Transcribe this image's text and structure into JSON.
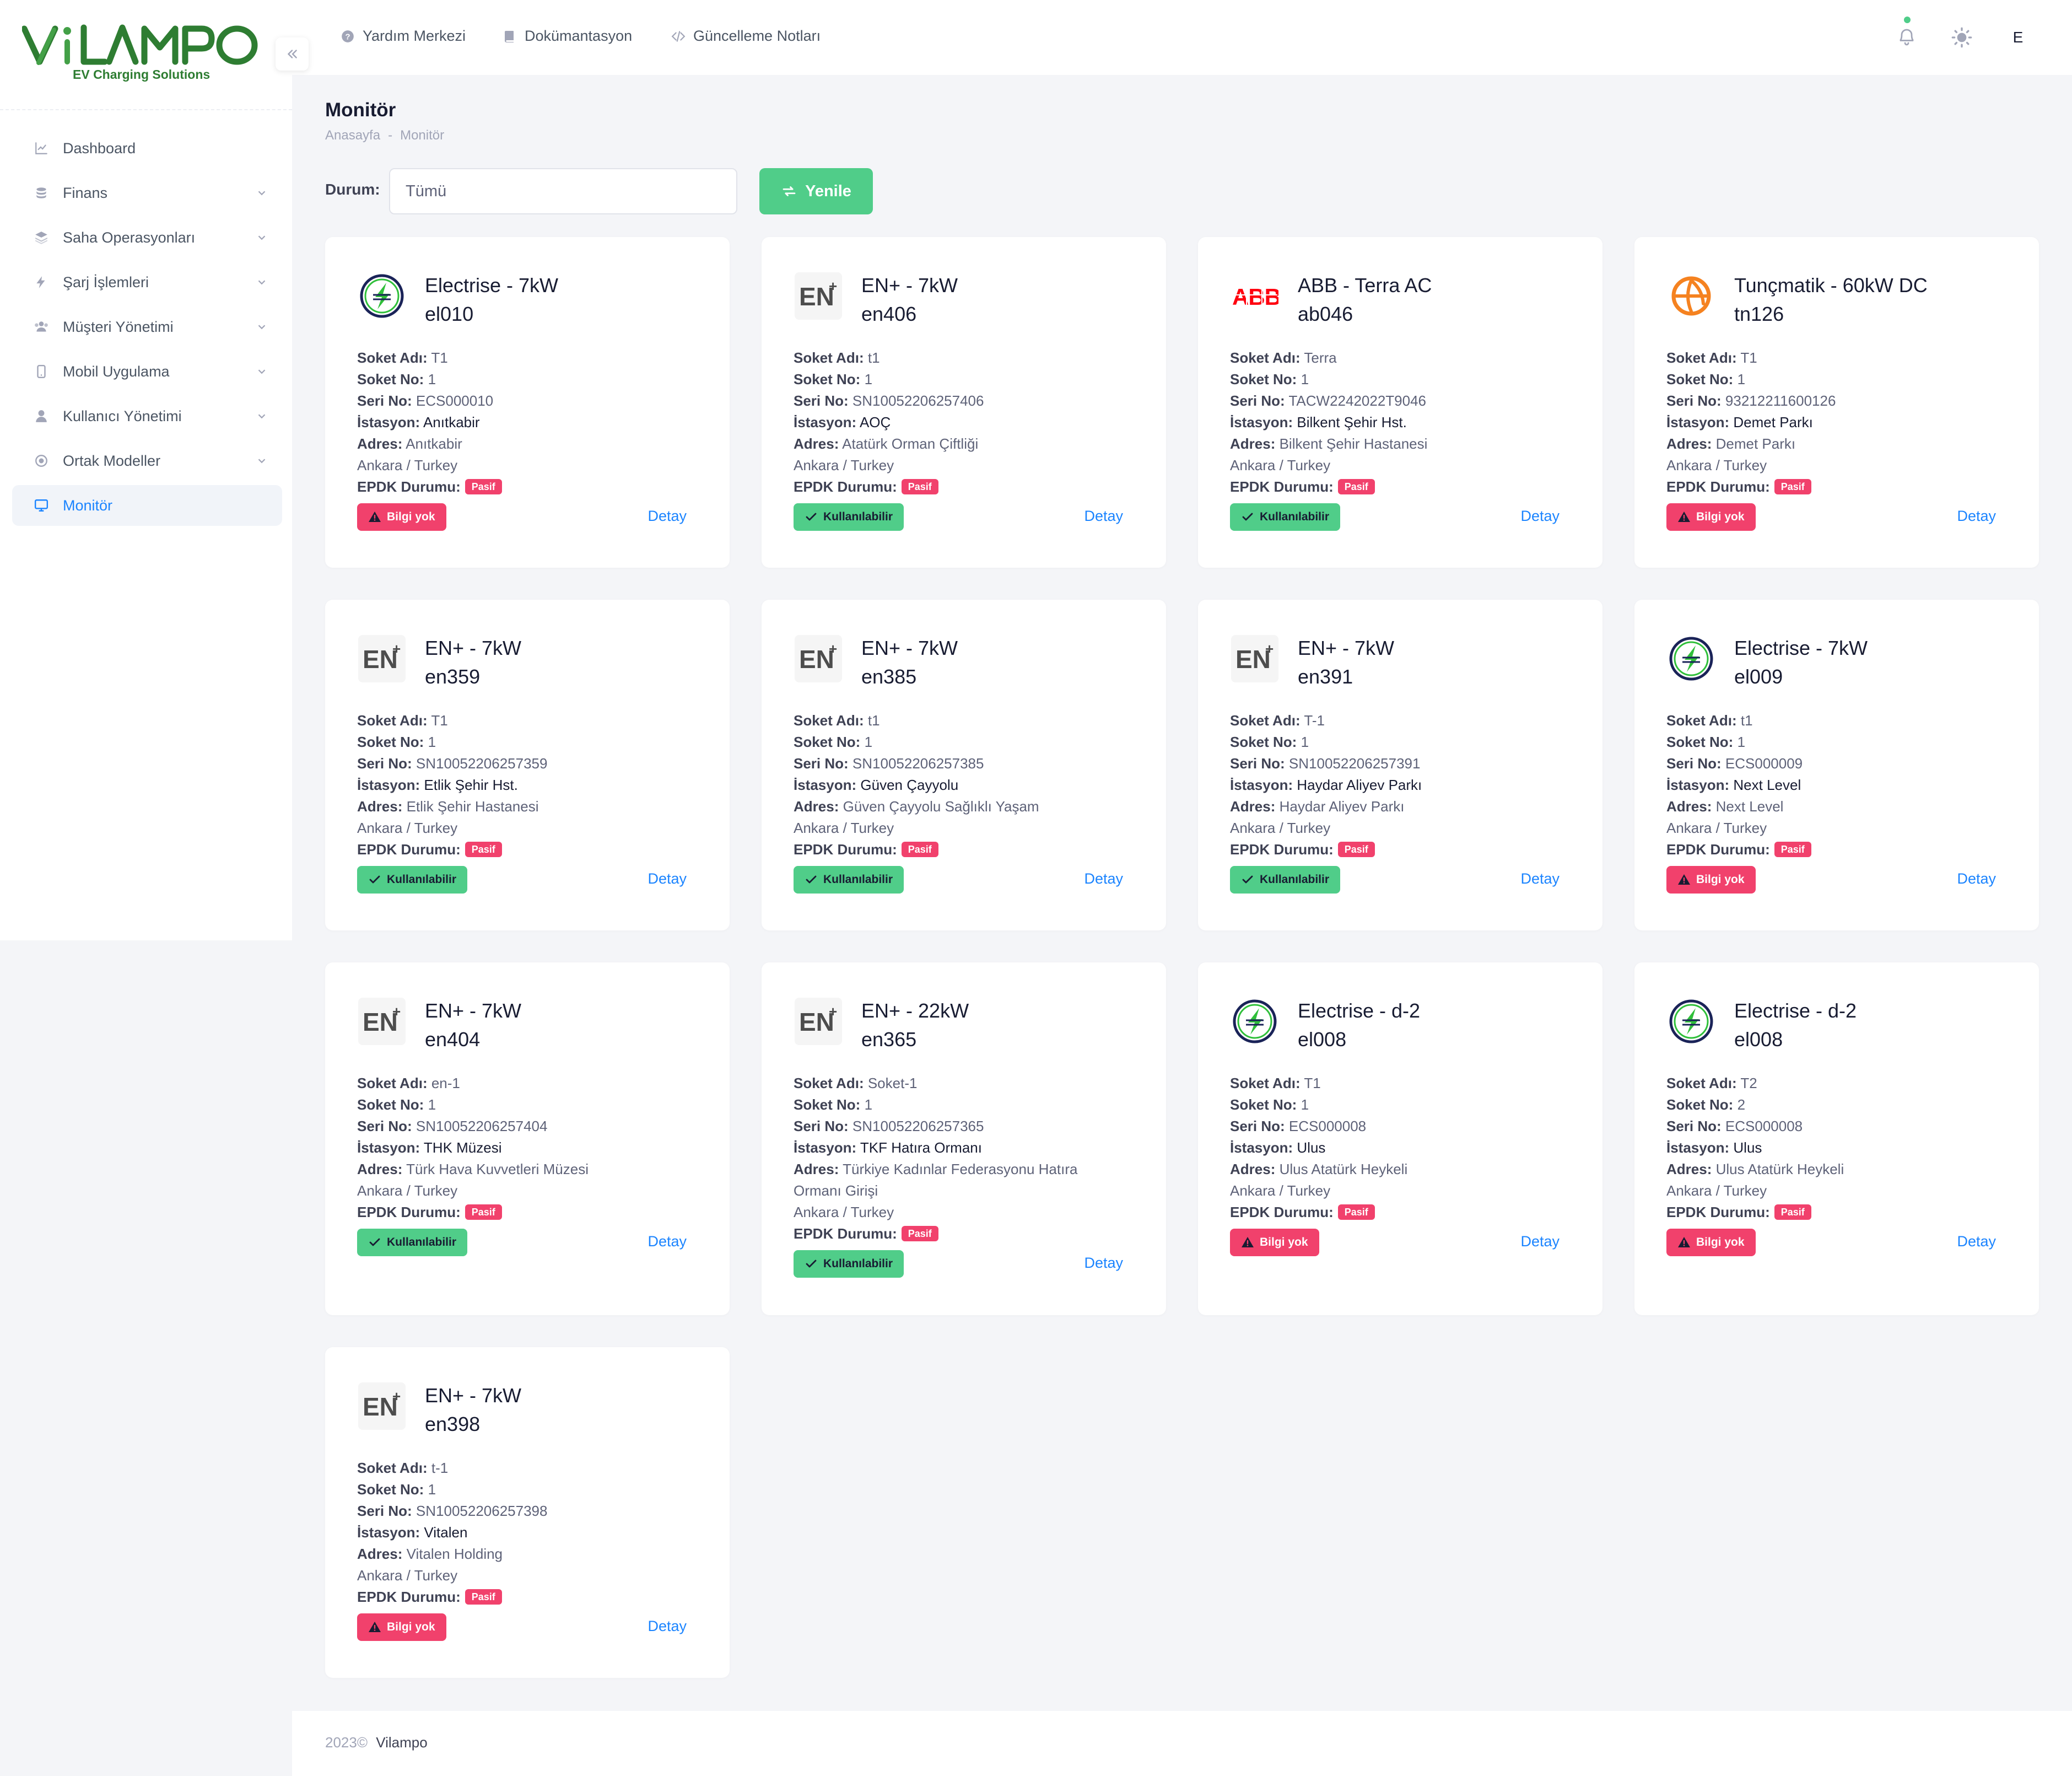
{
  "brand": {
    "logo_text": "ViLAMPO",
    "tagline": "EV Charging Solutions",
    "color_primary": "#2e7d32",
    "color_secondary": "#43a047"
  },
  "sidebar": {
    "items": [
      {
        "label": "Dashboard",
        "icon": "chart-line-icon",
        "has_children": false,
        "active": false
      },
      {
        "label": "Finans",
        "icon": "coins-icon",
        "has_children": true,
        "active": false
      },
      {
        "label": "Saha Operasyonları",
        "icon": "layers-icon",
        "has_children": true,
        "active": false
      },
      {
        "label": "Şarj İşlemleri",
        "icon": "lightning-icon",
        "has_children": true,
        "active": false
      },
      {
        "label": "Müşteri Yönetimi",
        "icon": "users-icon",
        "has_children": true,
        "active": false
      },
      {
        "label": "Mobil Uygulama",
        "icon": "mobile-icon",
        "has_children": true,
        "active": false
      },
      {
        "label": "Kullanıcı Yönetimi",
        "icon": "user-icon",
        "has_children": true,
        "active": false
      },
      {
        "label": "Ortak Modeller",
        "icon": "disc-icon",
        "has_children": true,
        "active": false
      },
      {
        "label": "Monitör",
        "icon": "monitor-icon",
        "has_children": false,
        "active": true
      }
    ]
  },
  "header": {
    "links": [
      {
        "label": "Yardım Merkezi",
        "icon": "question-circle-icon"
      },
      {
        "label": "Dokümantasyon",
        "icon": "book-icon"
      },
      {
        "label": "Güncelleme Notları",
        "icon": "code-icon"
      }
    ],
    "avatar_initial": "E"
  },
  "page": {
    "title": "Monitör",
    "breadcrumb": [
      "Anasayfa",
      "-",
      "Monitör"
    ],
    "filter_label": "Durum:",
    "filter_value": "Tümü",
    "refresh_label": "Yenile"
  },
  "labels": {
    "soket_adi": "Soket Adı:",
    "soket_no": "Soket No:",
    "seri_no": "Seri No:",
    "istasyon": "İstasyon:",
    "adres": "Adres:",
    "epdk": "EPDK Durumu:",
    "pasif": "Pasif",
    "detay": "Detay",
    "kullanilabilir": "Kullanılabilir",
    "bilgi_yok": "Bilgi yok"
  },
  "colors": {
    "accent": "#1b84ff",
    "success": "#50cd89",
    "danger": "#f1416c",
    "electrise_green": "#2fbf3a",
    "electrise_navy": "#1a2358",
    "abb_red": "#ff000f",
    "tuncmatik_orange": "#f58220"
  },
  "cards": [
    {
      "brand": "electrise",
      "model": "Electrise - 7kW",
      "code": "el010",
      "soket_adi": "T1",
      "soket_no": "1",
      "seri_no": "ECS000010",
      "istasyon": "Anıtkabir",
      "adres": "Anıtkabir",
      "city": "Ankara / Turkey",
      "status": "warn"
    },
    {
      "brand": "enplus",
      "model": "EN+ - 7kW",
      "code": "en406",
      "soket_adi": "t1",
      "soket_no": "1",
      "seri_no": "SN10052206257406",
      "istasyon": "AOÇ",
      "adres": "Atatürk Orman Çiftliği",
      "city": "Ankara / Turkey",
      "status": "ok"
    },
    {
      "brand": "abb",
      "model": "ABB - Terra AC",
      "code": "ab046",
      "soket_adi": "Terra",
      "soket_no": "1",
      "seri_no": "TACW2242022T9046",
      "istasyon": "Bilkent Şehir Hst.",
      "adres": "Bilkent Şehir Hastanesi",
      "city": "Ankara / Turkey",
      "status": "ok"
    },
    {
      "brand": "tuncmatik",
      "model": "Tunçmatik - 60kW DC",
      "code": "tn126",
      "soket_adi": "T1",
      "soket_no": "1",
      "seri_no": "93212211600126",
      "istasyon": "Demet Parkı",
      "adres": "Demet Parkı",
      "city": "Ankara / Turkey",
      "status": "warn"
    },
    {
      "brand": "enplus",
      "model": "EN+ - 7kW",
      "code": "en359",
      "soket_adi": "T1",
      "soket_no": "1",
      "seri_no": "SN10052206257359",
      "istasyon": "Etlik Şehir Hst.",
      "adres": "Etlik Şehir Hastanesi",
      "city": "Ankara / Turkey",
      "status": "ok"
    },
    {
      "brand": "enplus",
      "model": "EN+ - 7kW",
      "code": "en385",
      "soket_adi": "t1",
      "soket_no": "1",
      "seri_no": "SN10052206257385",
      "istasyon": "Güven Çayyolu",
      "adres": "Güven Çayyolu Sağlıklı Yaşam",
      "city": "Ankara / Turkey",
      "status": "ok"
    },
    {
      "brand": "enplus",
      "model": "EN+ - 7kW",
      "code": "en391",
      "soket_adi": "T-1",
      "soket_no": "1",
      "seri_no": "SN10052206257391",
      "istasyon": "Haydar Aliyev Parkı",
      "adres": "Haydar Aliyev Parkı",
      "city": "Ankara / Turkey",
      "status": "ok"
    },
    {
      "brand": "electrise",
      "model": "Electrise - 7kW",
      "code": "el009",
      "soket_adi": "t1",
      "soket_no": "1",
      "seri_no": "ECS000009",
      "istasyon": "Next Level",
      "adres": "Next Level",
      "city": "Ankara / Turkey",
      "status": "warn"
    },
    {
      "brand": "enplus",
      "model": "EN+ - 7kW",
      "code": "en404",
      "soket_adi": "en-1",
      "soket_no": "1",
      "seri_no": "SN10052206257404",
      "istasyon": "THK Müzesi",
      "adres": "Türk Hava Kuvvetleri Müzesi",
      "city": "Ankara / Turkey",
      "status": "ok"
    },
    {
      "brand": "enplus",
      "model": "EN+ - 22kW",
      "code": "en365",
      "soket_adi": "Soket-1",
      "soket_no": "1",
      "seri_no": "SN10052206257365",
      "istasyon": "TKF Hatıra Ormanı",
      "adres": "Türkiye Kadınlar Federasyonu Hatıra Ormanı Girişi",
      "city": "Ankara / Turkey",
      "status": "ok"
    },
    {
      "brand": "electrise",
      "model": "Electrise - d-2",
      "code": "el008",
      "soket_adi": "T1",
      "soket_no": "1",
      "seri_no": "ECS000008",
      "istasyon": "Ulus",
      "adres": "Ulus Atatürk Heykeli",
      "city": "Ankara / Turkey",
      "status": "warn"
    },
    {
      "brand": "electrise",
      "model": "Electrise - d-2",
      "code": "el008",
      "soket_adi": "T2",
      "soket_no": "2",
      "seri_no": "ECS000008",
      "istasyon": "Ulus",
      "adres": "Ulus Atatürk Heykeli",
      "city": "Ankara / Turkey",
      "status": "warn"
    },
    {
      "brand": "enplus",
      "model": "EN+ - 7kW",
      "code": "en398",
      "soket_adi": "t-1",
      "soket_no": "1",
      "seri_no": "SN10052206257398",
      "istasyon": "Vitalen",
      "adres": "Vitalen Holding",
      "city": "Ankara / Turkey",
      "status": "warn"
    }
  ],
  "footer": {
    "year": "2023©",
    "brand": "Vilampo"
  }
}
